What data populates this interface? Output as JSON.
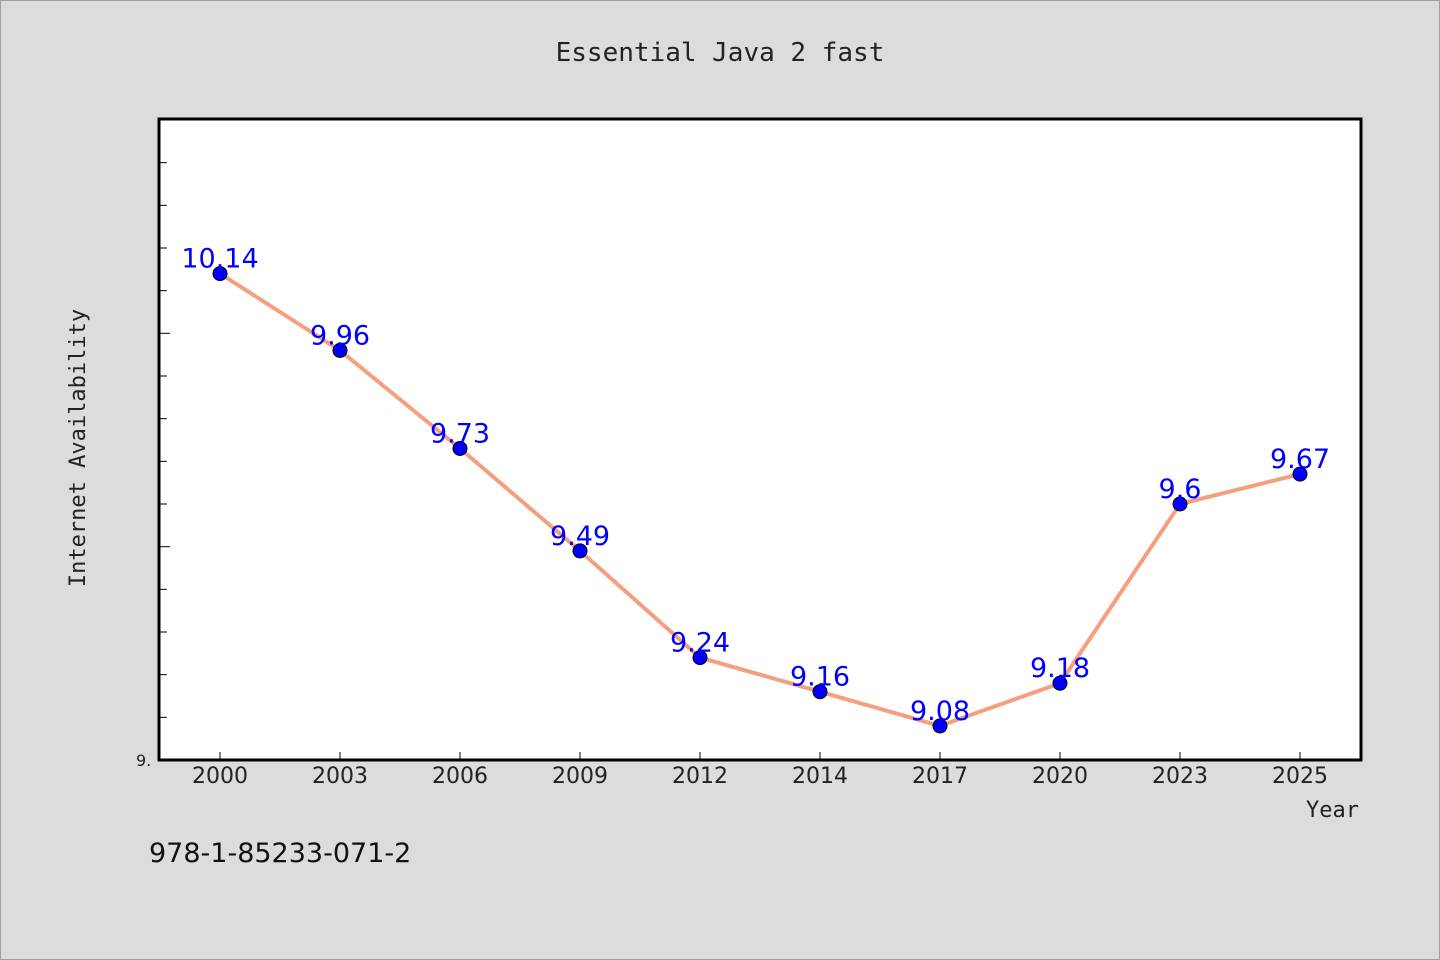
{
  "chart_data": {
    "type": "line",
    "title": "Essential Java 2 fast",
    "xlabel": "Year",
    "ylabel": "Internet Availability",
    "categories": [
      "2000",
      "2003",
      "2006",
      "2009",
      "2012",
      "2014",
      "2017",
      "2020",
      "2023",
      "2025"
    ],
    "series": [
      {
        "values": [
          10.14,
          9.96,
          9.73,
          9.49,
          9.24,
          9.16,
          9.08,
          9.18,
          9.6,
          9.67
        ]
      }
    ],
    "data_labels": [
      "10.14",
      "9.96",
      "9.73",
      "9.49",
      "9.24",
      "9.16",
      "9.08",
      "9.18",
      "9.6",
      "9.67"
    ],
    "ylim": [
      9.0,
      10.5
    ],
    "ytick_label": "9.",
    "grid": false,
    "line_color": "#f4a07e",
    "marker_color": "#0000ff",
    "label_color": "#0000ff"
  },
  "footer": {
    "isbn": "978-1-85233-071-2"
  }
}
